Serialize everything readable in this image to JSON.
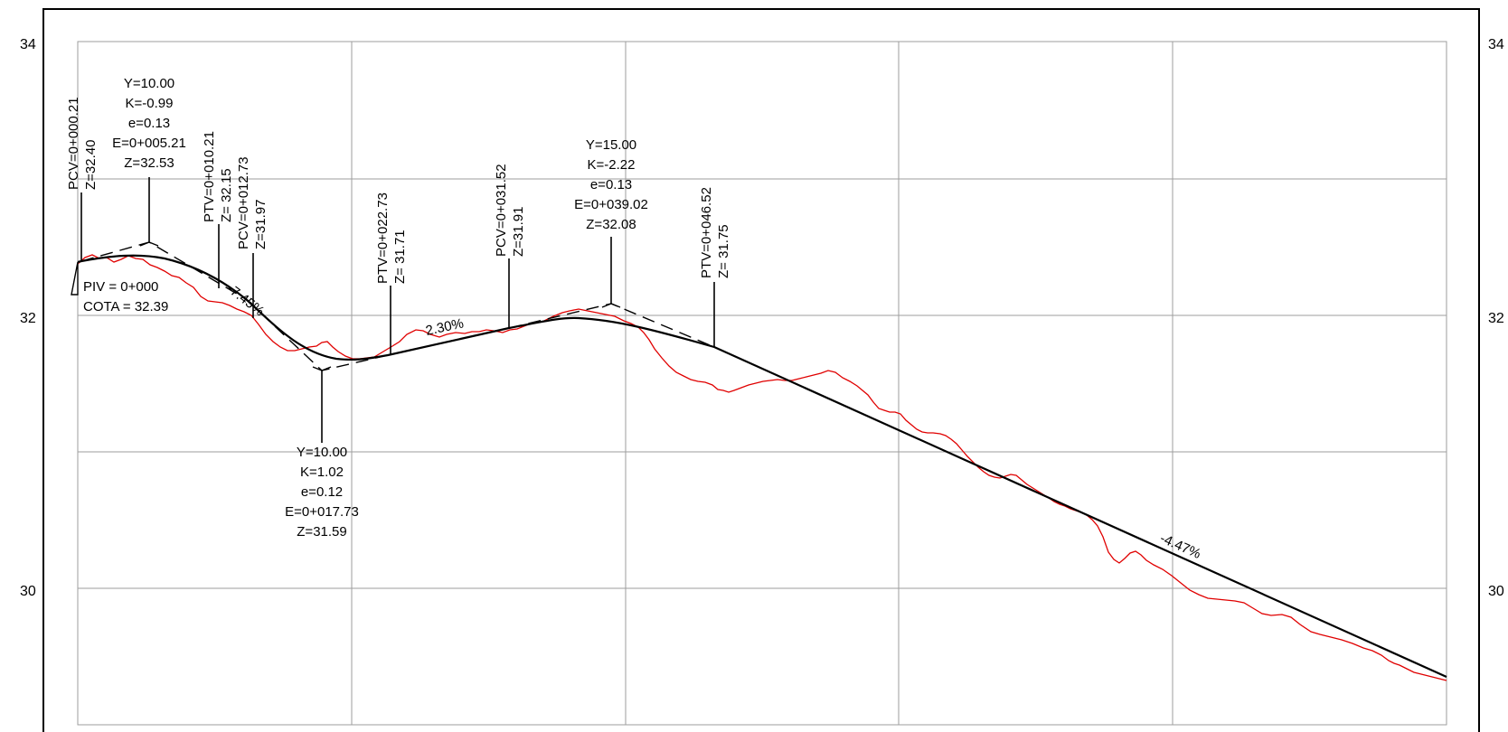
{
  "drawing": {
    "y_axis": {
      "left_labels": [
        "34",
        "32",
        "30"
      ],
      "right_labels": [
        "34",
        "32",
        "30"
      ]
    },
    "colors": {
      "terrain": "#e00000",
      "grade_line": "#000000",
      "grid": "#9e9e9e",
      "frame": "#000000"
    },
    "piv_start": {
      "line1": "PIV = 0+000",
      "line2": "COTA =  32.39"
    },
    "stations": [
      {
        "name": "pcv-1",
        "lines": [
          "PCV=0+000.21",
          "Z=32.40"
        ]
      },
      {
        "name": "ptv-1",
        "lines": [
          "PTV=0+010.21",
          "Z= 32.15"
        ]
      },
      {
        "name": "pcv-2",
        "lines": [
          "PCV=0+012.73",
          "Z=31.97"
        ]
      },
      {
        "name": "ptv-2",
        "lines": [
          "PTV=0+022.73",
          "Z= 31.71"
        ]
      },
      {
        "name": "pcv-3",
        "lines": [
          "PCV=0+031.52",
          "Z=31.91"
        ]
      },
      {
        "name": "ptv-3",
        "lines": [
          "PTV=0+046.52",
          "Z= 31.75"
        ]
      }
    ],
    "curves": [
      {
        "name": "curve-1",
        "lines": [
          "Y=10.00",
          "K=-0.99",
          "e=0.13",
          "E=0+005.21",
          "Z=32.53"
        ]
      },
      {
        "name": "curve-2",
        "lines": [
          "Y=10.00",
          "K=1.02",
          "e=0.12",
          "E=0+017.73",
          "Z=31.59"
        ]
      },
      {
        "name": "curve-3",
        "lines": [
          "Y=15.00",
          "K=-2.22",
          "e=0.13",
          "E=0+039.02",
          "Z=32.08"
        ]
      }
    ],
    "grades": [
      "-7.45%",
      "2.30%",
      "-4.47%"
    ]
  }
}
